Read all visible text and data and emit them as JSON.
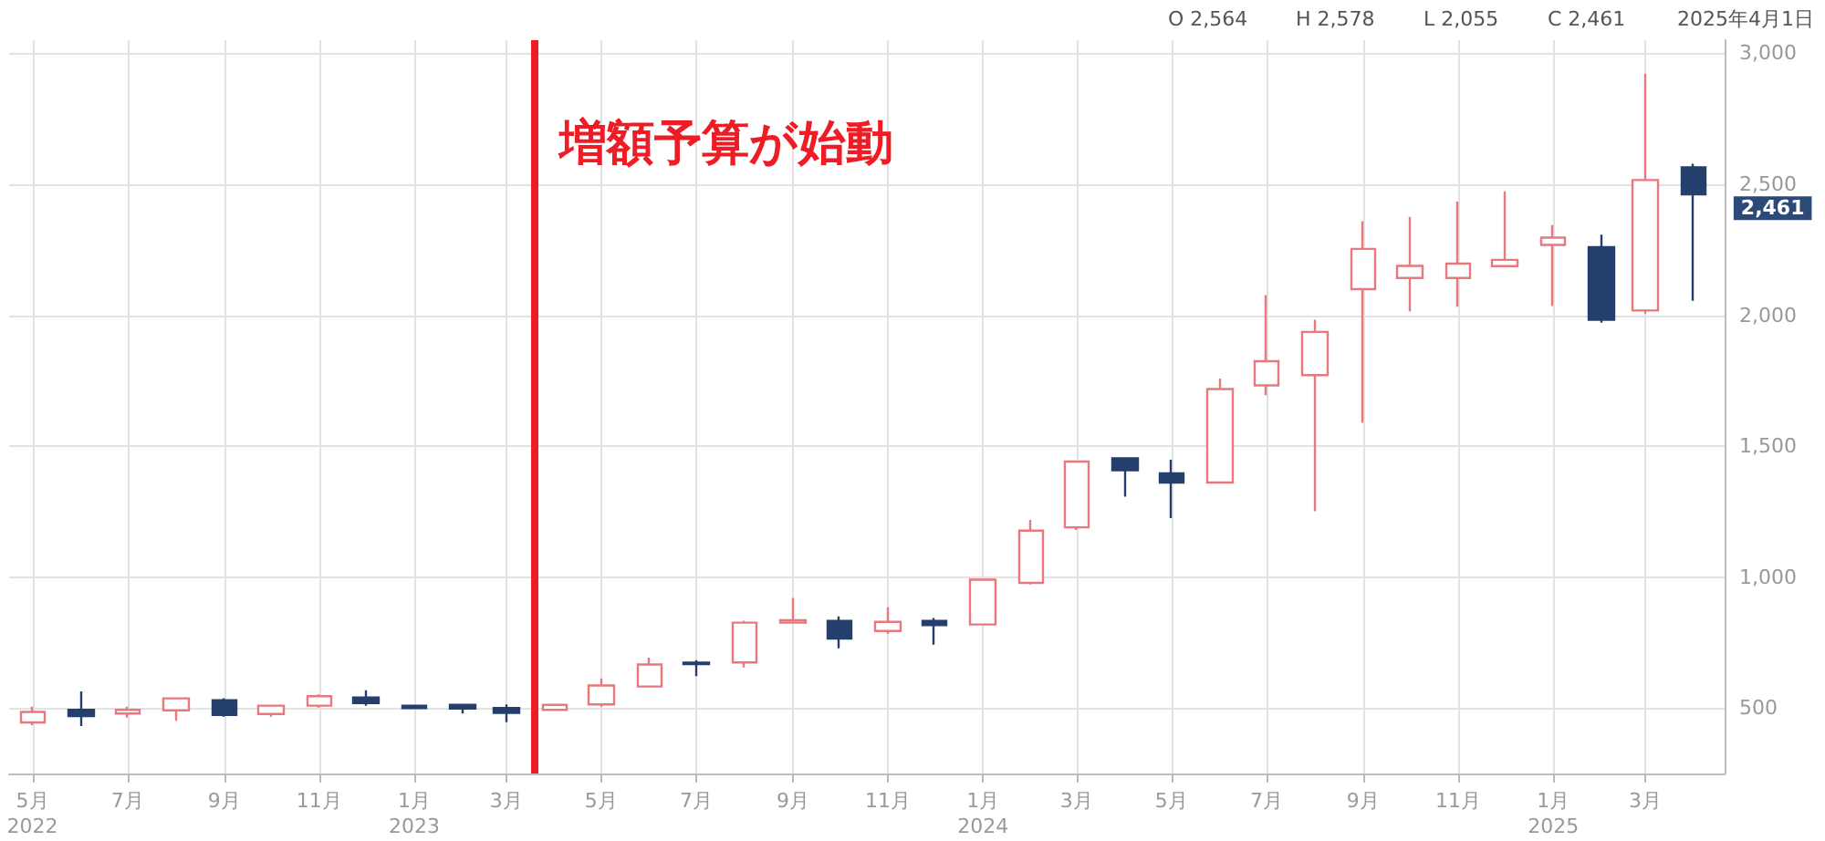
{
  "chart_data": {
    "type": "candlestick",
    "x": [
      "2022-05",
      "2022-06",
      "2022-07",
      "2022-08",
      "2022-09",
      "2022-10",
      "2022-11",
      "2022-12",
      "2023-01",
      "2023-02",
      "2023-03",
      "2023-04",
      "2023-05",
      "2023-06",
      "2023-07",
      "2023-08",
      "2023-09",
      "2023-10",
      "2023-11",
      "2023-12",
      "2024-01",
      "2024-02",
      "2024-03",
      "2024-04",
      "2024-05",
      "2024-06",
      "2024-07",
      "2024-08",
      "2024-09",
      "2024-10",
      "2024-11",
      "2024-12",
      "2025-01",
      "2025-02",
      "2025-03",
      "2025-04"
    ],
    "ohlc": [
      [
        445,
        505,
        435,
        485
      ],
      [
        493,
        563,
        431,
        469
      ],
      [
        479,
        505,
        463,
        493
      ],
      [
        491,
        537,
        451,
        537
      ],
      [
        530,
        537,
        467,
        474
      ],
      [
        477,
        509,
        467,
        509
      ],
      [
        509,
        552,
        502,
        545
      ],
      [
        540,
        568,
        509,
        519
      ],
      [
        509,
        512,
        498,
        500
      ],
      [
        512,
        516,
        479,
        498
      ],
      [
        500,
        514,
        446,
        481
      ],
      [
        493,
        514,
        491,
        512
      ],
      [
        514,
        613,
        505,
        586
      ],
      [
        582,
        692,
        578,
        666
      ],
      [
        673,
        683,
        622,
        668
      ],
      [
        674,
        833,
        655,
        826
      ],
      [
        826,
        920,
        826,
        835
      ],
      [
        833,
        850,
        728,
        765
      ],
      [
        794,
        885,
        784,
        829
      ],
      [
        833,
        844,
        742,
        817
      ],
      [
        819,
        990,
        815,
        990
      ],
      [
        978,
        1218,
        972,
        1177
      ],
      [
        1190,
        1441,
        1180,
        1441
      ],
      [
        1453,
        1456,
        1307,
        1408
      ],
      [
        1396,
        1448,
        1225,
        1361
      ],
      [
        1361,
        1758,
        1357,
        1718
      ],
      [
        1732,
        2077,
        1694,
        1824
      ],
      [
        1771,
        1983,
        1251,
        1936
      ],
      [
        2099,
        2359,
        1589,
        2253
      ],
      [
        2142,
        2375,
        2015,
        2188
      ],
      [
        2142,
        2434,
        2032,
        2197
      ],
      [
        2187,
        2473,
        2187,
        2211
      ],
      [
        2268,
        2344,
        2035,
        2296
      ],
      [
        2260,
        2307,
        1971,
        1982
      ],
      [
        2018,
        2922,
        2006,
        2516
      ],
      [
        2564,
        2578,
        2055,
        2461
      ]
    ],
    "colors": [
      "#e8787c",
      "#243f6b",
      "#e8787c",
      "#e8787c",
      "#243f6b",
      "#e8787c",
      "#e8787c",
      "#243f6b",
      "#243f6b",
      "#243f6b",
      "#243f6b",
      "#e8787c",
      "#e8787c",
      "#e8787c",
      "#243f6b",
      "#e8787c",
      "#e8787c",
      "#243f6b",
      "#e8787c",
      "#243f6b",
      "#e8787c",
      "#e8787c",
      "#e8787c",
      "#243f6b",
      "#243f6b",
      "#e8787c",
      "#e8787c",
      "#e8787c",
      "#e8787c",
      "#e8787c",
      "#e8787c",
      "#e8787c",
      "#e8787c",
      "#243f6b",
      "#e8787c",
      "#243f6b"
    ],
    "xlim": [
      "2022-04-16",
      "2025-04-21"
    ],
    "xticks": [
      {
        "value": "2022-05",
        "label": "5月\n2022"
      },
      {
        "value": "2022-07",
        "label": "7月"
      },
      {
        "value": "2022-09",
        "label": "9月"
      },
      {
        "value": "2022-11",
        "label": "11月"
      },
      {
        "value": "2023-01",
        "label": "1月\n2023"
      },
      {
        "value": "2023-03",
        "label": "3月"
      },
      {
        "value": "2023-05",
        "label": "5月"
      },
      {
        "value": "2023-07",
        "label": "7月"
      },
      {
        "value": "2023-09",
        "label": "9月"
      },
      {
        "value": "2023-11",
        "label": "11月"
      },
      {
        "value": "2024-01",
        "label": "1月\n2024"
      },
      {
        "value": "2024-03",
        "label": "3月"
      },
      {
        "value": "2024-05",
        "label": "5月"
      },
      {
        "value": "2024-07",
        "label": "7月"
      },
      {
        "value": "2024-09",
        "label": "9月"
      },
      {
        "value": "2024-11",
        "label": "11月"
      },
      {
        "value": "2025-01",
        "label": "1月\n2025"
      },
      {
        "value": "2025-03",
        "label": "3月"
      }
    ],
    "ylim": [
      250,
      3050
    ],
    "yticks": [
      {
        "value": 500,
        "label": "500"
      },
      {
        "value": 1000,
        "label": "1,000"
      },
      {
        "value": 1500,
        "label": "1,500"
      },
      {
        "value": 2000,
        "label": "2,000"
      },
      {
        "value": 2500,
        "label": "2,500"
      },
      {
        "value": 3000,
        "label": "3,000"
      }
    ],
    "grid": true,
    "ref_lines": [
      {
        "axis": "x",
        "value": "2023-03-19",
        "label": "増額予算が始動",
        "color": "#ee1c25"
      }
    ],
    "annotations": [
      "O 2,564",
      "H 2,578",
      "L 2,055",
      "C 2,461",
      "2025年4月1日",
      {
        "text": "2,461",
        "x": "2025-04",
        "y": 2461
      }
    ]
  }
}
